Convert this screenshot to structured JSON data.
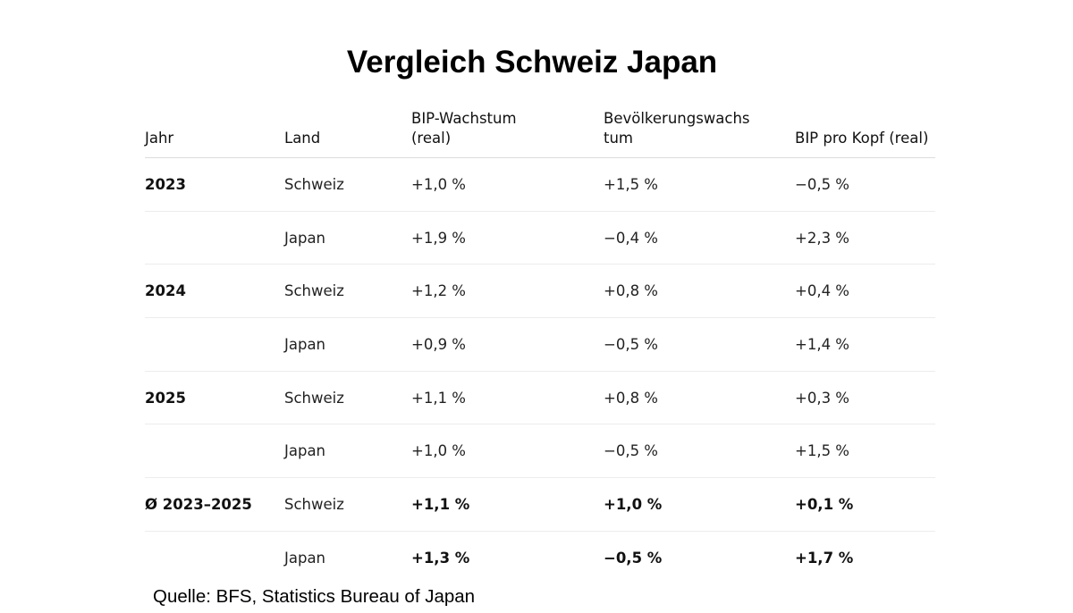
{
  "title": "Vergleich Schweiz Japan",
  "table": {
    "headers": {
      "jahr": "Jahr",
      "land": "Land",
      "bip_wachstum": "BIP-Wachstum\n(real)",
      "bev_wachstum": "Bevölkerungswachs\ntum",
      "bip_pro_kopf": "BIP pro Kopf (real)"
    },
    "rows": [
      {
        "jahr": "2023",
        "land": "Schweiz",
        "bip": "+1,0 %",
        "bev": "+1,5 %",
        "kopf": "−0,5 %"
      },
      {
        "jahr": "",
        "land": "Japan",
        "bip": "+1,9 %",
        "bev": "−0,4 %",
        "kopf": "+2,3 %"
      },
      {
        "jahr": "2024",
        "land": "Schweiz",
        "bip": "+1,2 %",
        "bev": "+0,8 %",
        "kopf": "+0,4 %"
      },
      {
        "jahr": "",
        "land": "Japan",
        "bip": "+0,9 %",
        "bev": "−0,5 %",
        "kopf": "+1,4 %"
      },
      {
        "jahr": "2025",
        "land": "Schweiz",
        "bip": "+1,1 %",
        "bev": "+0,8 %",
        "kopf": "+0,3 %"
      },
      {
        "jahr": "",
        "land": "Japan",
        "bip": "+1,0 %",
        "bev": "−0,5 %",
        "kopf": "+1,5 %"
      },
      {
        "jahr": "Ø 2023–2025",
        "land": "Schweiz",
        "bip": "+1,1 %",
        "bev": "+1,0 %",
        "kopf": "+0,1 %"
      },
      {
        "jahr": "",
        "land": "Japan",
        "bip": "+1,3 %",
        "bev": "−0,5 %",
        "kopf": "+1,7 %"
      }
    ]
  },
  "source": "Quelle: BFS, Statistics Bureau of Japan"
}
